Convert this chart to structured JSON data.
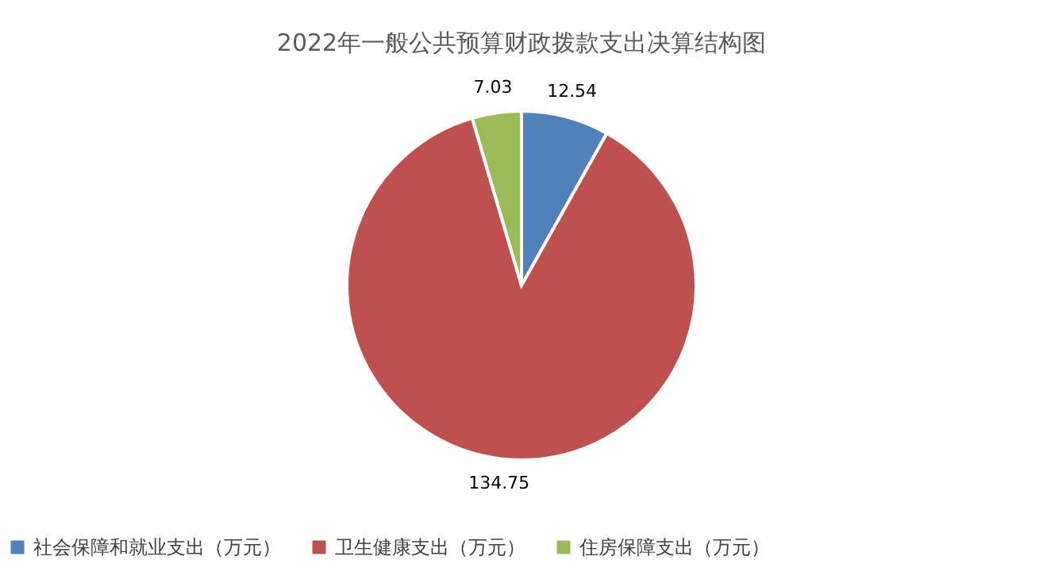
{
  "chart_data": {
    "type": "pie",
    "title": "2022年一般公共预算财政拨款支出决算结构图",
    "categories": [
      "社会保障和就业支出（万元）",
      "卫生健康支出（万元）",
      "住房保障支出（万元）"
    ],
    "values": [
      12.54,
      134.75,
      7.03
    ],
    "colors": [
      "#4f81bd",
      "#c0504d",
      "#9bbb59"
    ],
    "data_labels": true,
    "legend": "bottom"
  }
}
